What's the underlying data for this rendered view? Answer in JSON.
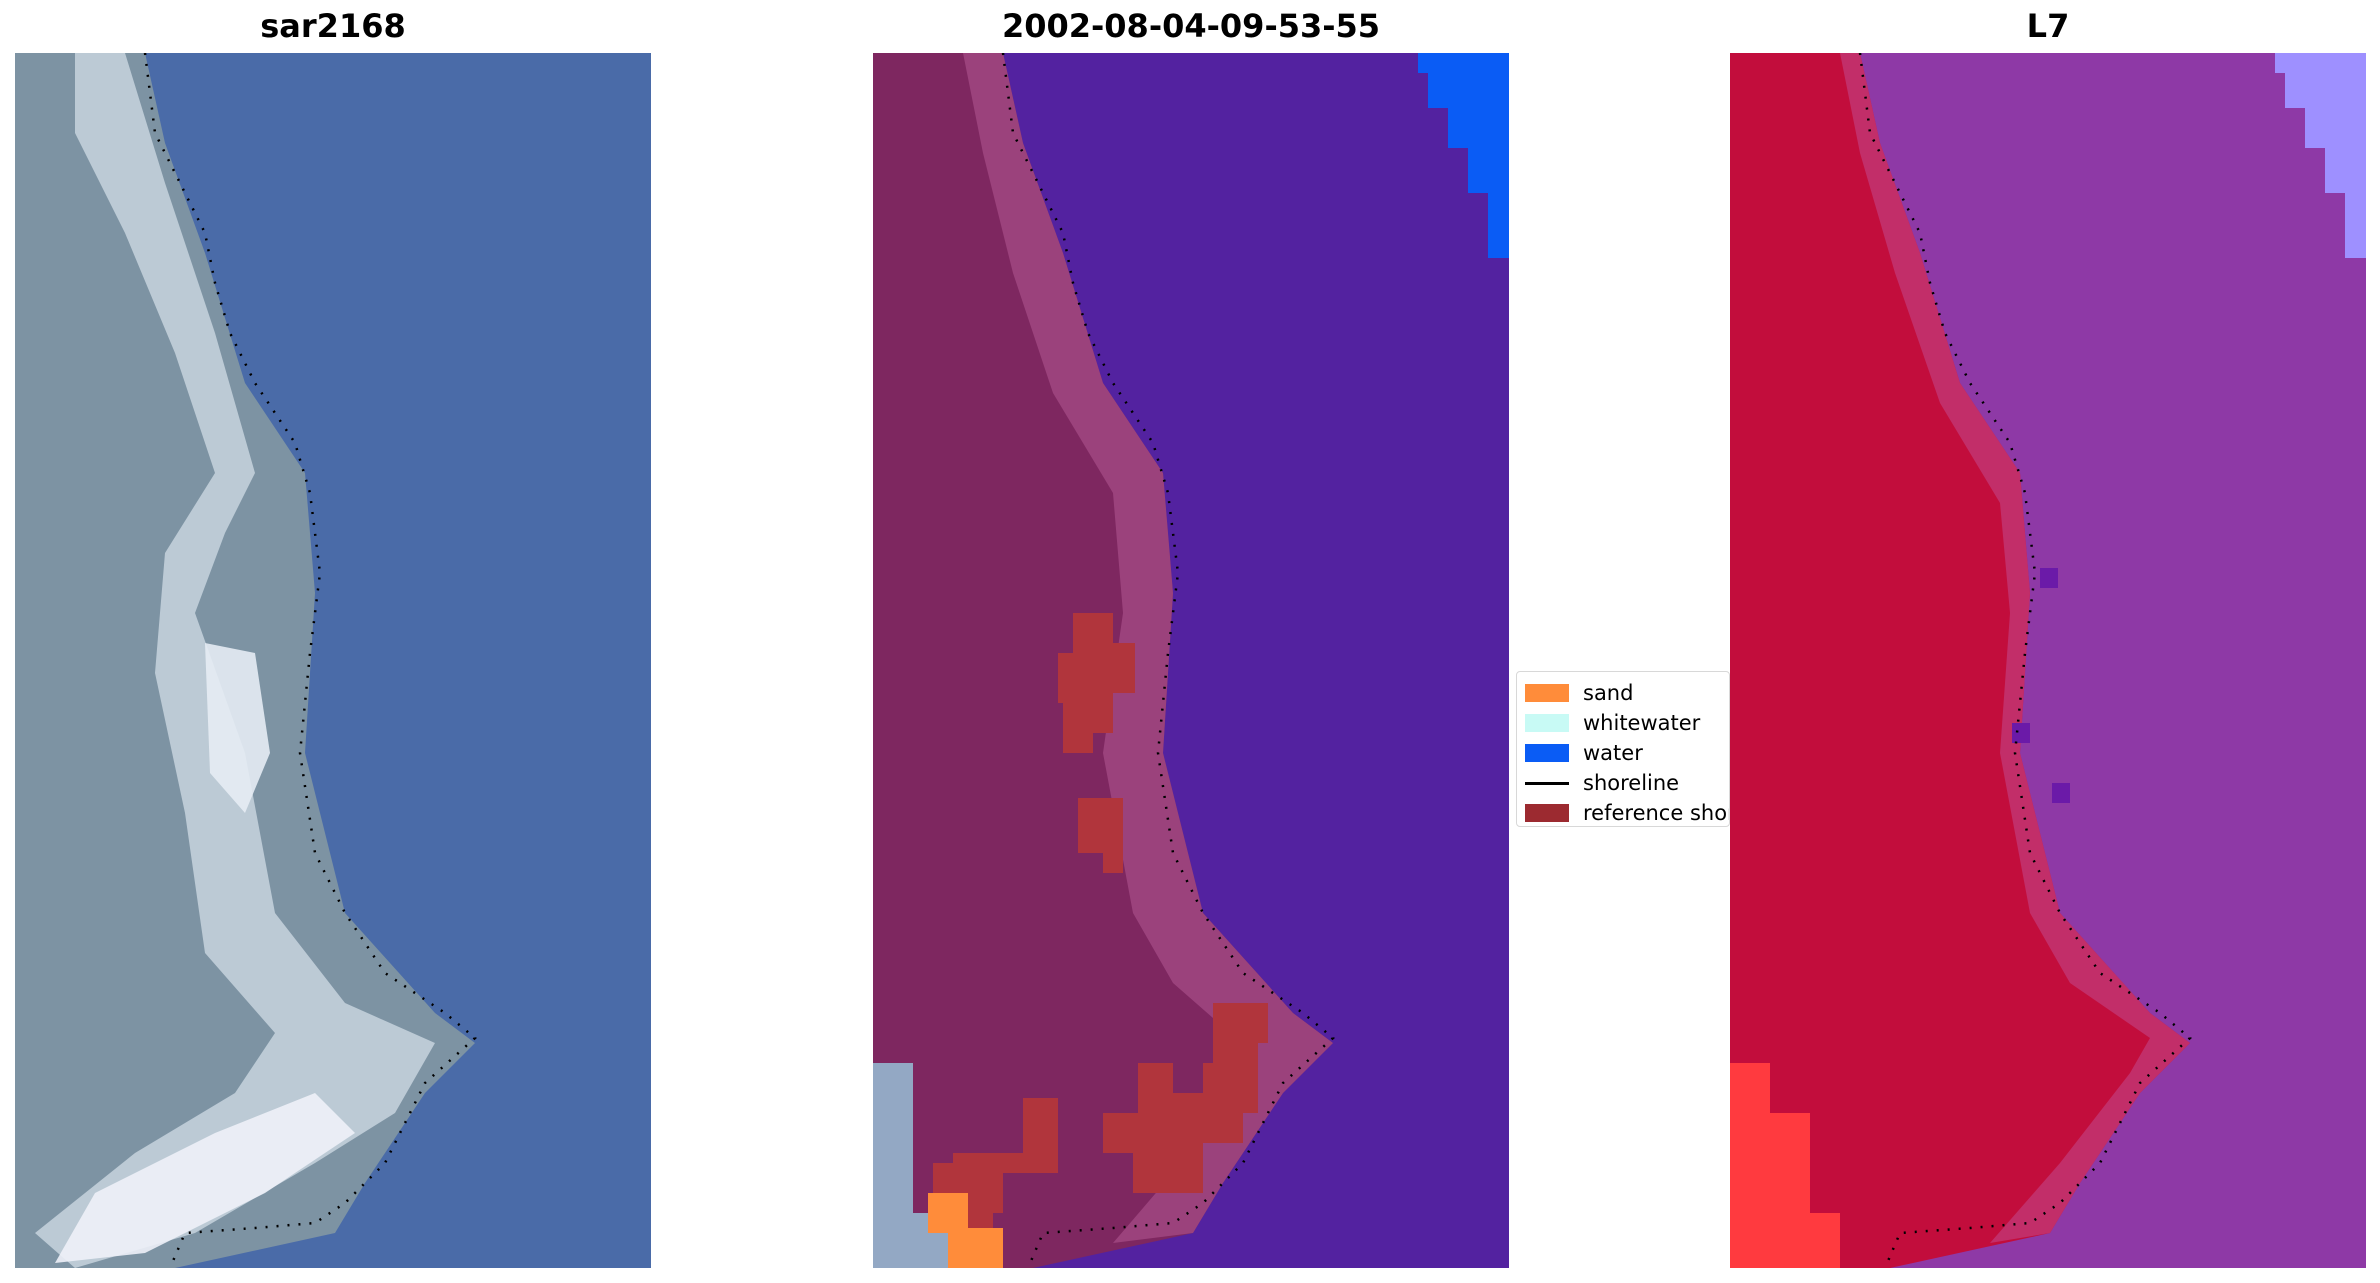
{
  "panels": [
    {
      "title": "sar2168"
    },
    {
      "title": "2002-08-04-09-53-55"
    },
    {
      "title": "L7"
    }
  ],
  "legend": {
    "items": [
      {
        "label": "sand",
        "color": "#ff8c3a"
      },
      {
        "label": "whitewater",
        "color": "#c8faf5"
      },
      {
        "label": "water",
        "color": "#0a5cf5"
      },
      {
        "label": "shoreline",
        "color": "#000000"
      },
      {
        "label": "reference shoreline",
        "color": "#9c2a30"
      }
    ]
  },
  "colors": {
    "rgb_water": "#4a6ba8",
    "rgb_land": "#7d93a3",
    "class_water_bg": "#5322a0",
    "class_land": "#7e2760",
    "class_buffer": "#b1353c",
    "l7_water": "#8e39a6",
    "l7_land": "#c20d3c",
    "l7_edge": "#ff3a3f",
    "l7_blue": "#9e90ff"
  }
}
